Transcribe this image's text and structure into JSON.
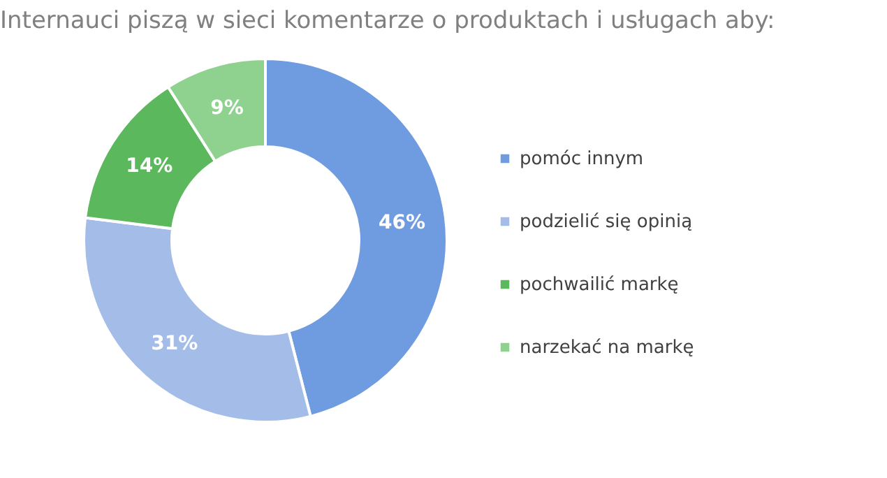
{
  "chart_data": {
    "type": "donut",
    "title": "Internauci piszą w sieci komentarze o produktach i usługach aby:",
    "categories": [
      "pomóc innym",
      "podzielić się opinią",
      "pochwailić markę",
      "narzekać na markę"
    ],
    "values": [
      46,
      31,
      14,
      9
    ],
    "colors": [
      "#6f9be0",
      "#a3bde8",
      "#5cb85c",
      "#8fd18f"
    ],
    "value_labels": [
      "46%",
      "31%",
      "14%",
      "9%"
    ],
    "legend": "right"
  }
}
